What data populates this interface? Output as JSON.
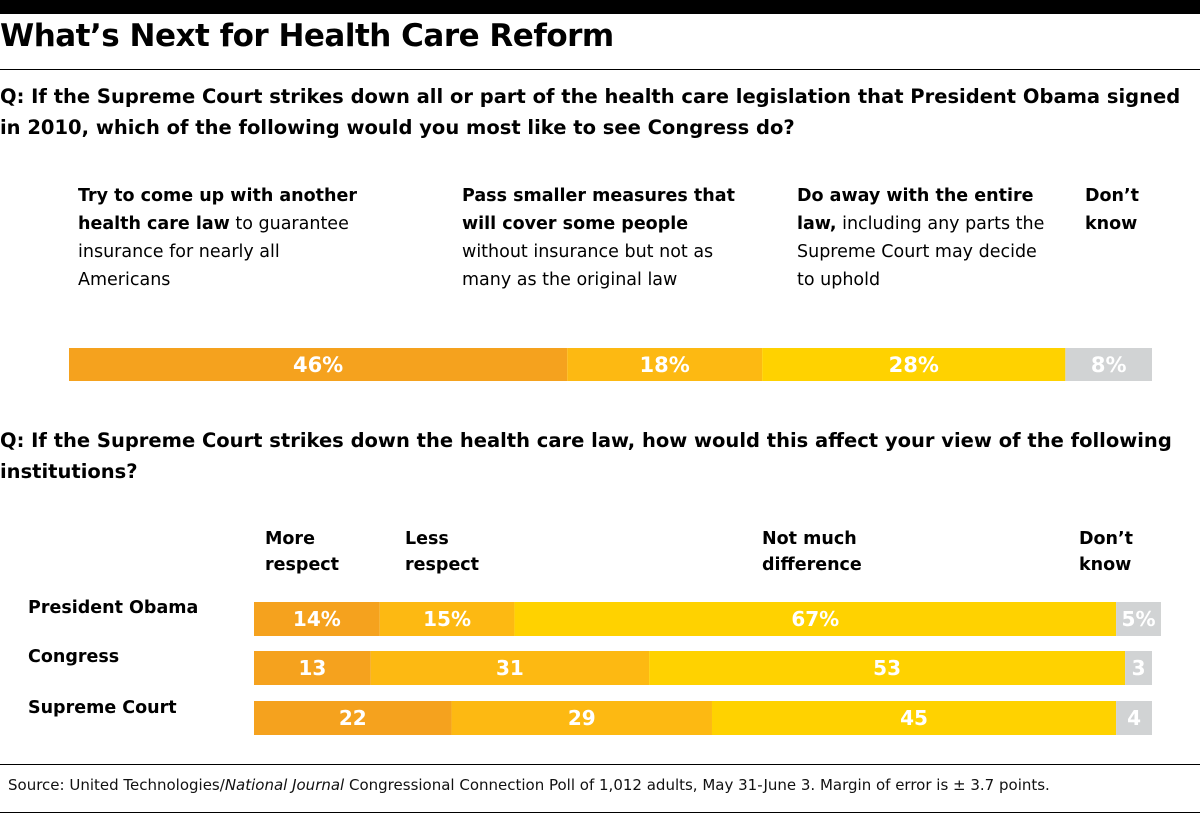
{
  "title": "What’s Next for Health Care Reform",
  "q1": {
    "text": "Q: If the Supreme Court strikes down all or part of the health care legislation that President Obama signed in 2010, which of the following would you most like to see Congress do?",
    "options": [
      {
        "bold": "Try to come up with another health care law",
        "rest": " to guarantee insurance for nearly all Americans"
      },
      {
        "bold": "Pass smaller measures that will cover some people",
        "rest": " without insurance but not as many as the original law"
      },
      {
        "bold": "Do away with the entire law,",
        "rest": " including any parts the Supreme Court may decide to uphold"
      },
      {
        "bold": "Don’t know",
        "rest": ""
      }
    ]
  },
  "q2": {
    "text": "Q: If the Supreme Court strikes down the health care law, how would this affect your view of the following institutions?",
    "headers": [
      "More respect",
      "Less respect",
      "Not much difference",
      "Don’t know"
    ]
  },
  "source": {
    "prefix": "Source: United Technologies/",
    "italic": "National Journal",
    "suffix": " Congressional Connection Poll of 1,012 adults, May 31-June 3. Margin of error is ± 3.7 points."
  },
  "colors": {
    "dark_orange": "#F5A21E",
    "orange": "#FDB912",
    "yellow": "#FFD200",
    "gray": "#D1D3D4"
  },
  "chart_data": [
    {
      "type": "bar",
      "stacked": true,
      "orientation": "horizontal",
      "categories": [
        "Try to come up with another health care law",
        "Pass smaller measures",
        "Do away with the entire law",
        "Don’t know"
      ],
      "values": [
        46,
        18,
        28,
        8
      ],
      "labels": [
        "46%",
        "18%",
        "28%",
        "8%"
      ]
    },
    {
      "type": "bar",
      "stacked": true,
      "orientation": "horizontal",
      "rows": [
        "President Obama",
        "Congress",
        "Supreme Court"
      ],
      "series": [
        {
          "name": "More respect",
          "values": [
            14,
            13,
            22
          ],
          "labels": [
            "14%",
            "13",
            "22"
          ]
        },
        {
          "name": "Less respect",
          "values": [
            15,
            31,
            29
          ],
          "labels": [
            "15%",
            "31",
            "29"
          ]
        },
        {
          "name": "Not much difference",
          "values": [
            67,
            53,
            45
          ],
          "labels": [
            "67%",
            "53",
            "45"
          ]
        },
        {
          "name": "Don’t know",
          "values": [
            5,
            3,
            4
          ],
          "labels": [
            "5%",
            "3",
            "4"
          ]
        }
      ]
    }
  ]
}
